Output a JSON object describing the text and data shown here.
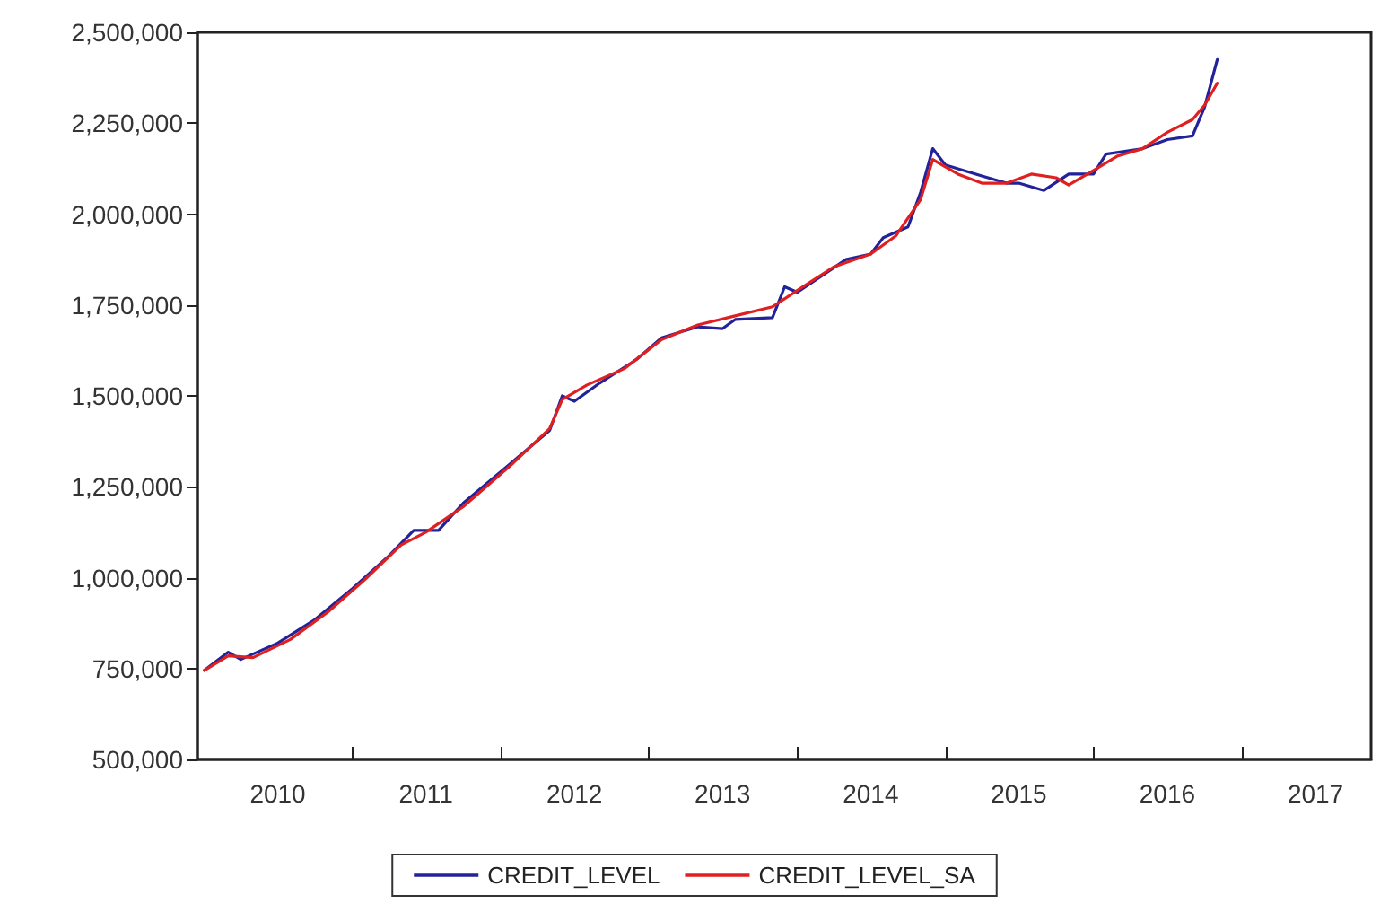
{
  "chart_data": {
    "type": "line",
    "xlim": [
      "2009-12-15",
      "2017-11-15"
    ],
    "xticks": [
      {
        "value": "2010-07",
        "label": "2010"
      },
      {
        "value": "2011-01",
        "label": null
      },
      {
        "value": "2011-07",
        "label": "2011"
      },
      {
        "value": "2012-01",
        "label": null
      },
      {
        "value": "2012-07",
        "label": "2012"
      },
      {
        "value": "2013-01",
        "label": null
      },
      {
        "value": "2013-07",
        "label": "2013"
      },
      {
        "value": "2014-01",
        "label": null
      },
      {
        "value": "2014-07",
        "label": "2014"
      },
      {
        "value": "2015-01",
        "label": null
      },
      {
        "value": "2015-07",
        "label": "2015"
      },
      {
        "value": "2016-01",
        "label": null
      },
      {
        "value": "2016-07",
        "label": "2016"
      },
      {
        "value": "2017-01",
        "label": null
      },
      {
        "value": "2017-07",
        "label": "2017"
      }
    ],
    "ylim": [
      500000,
      2500000
    ],
    "yticks": [
      {
        "value": 500000,
        "label": "500,000"
      },
      {
        "value": 750000,
        "label": "750,000"
      },
      {
        "value": 1000000,
        "label": "1,000,000"
      },
      {
        "value": 1250000,
        "label": "1,250,000"
      },
      {
        "value": 1500000,
        "label": "1,500,000"
      },
      {
        "value": 1750000,
        "label": "1,750,000"
      },
      {
        "value": 2000000,
        "label": "2,000,000"
      },
      {
        "value": 2250000,
        "label": "2,250,000"
      },
      {
        "value": 2500000,
        "label": "2,500,000"
      }
    ],
    "grid": false,
    "legend": "bottom",
    "marker": "none",
    "line_style": "solid",
    "series": [
      {
        "name": "CREDIT_LEVEL",
        "color": "#22229a",
        "x": [
          "2010-01",
          "2010-03",
          "2010-04",
          "2010-07",
          "2010-10",
          "2011-01",
          "2011-04",
          "2011-06",
          "2011-08",
          "2011-10",
          "2012-02",
          "2012-05",
          "2012-06",
          "2012-07",
          "2012-09",
          "2012-12",
          "2013-02",
          "2013-05",
          "2013-07",
          "2013-08",
          "2013-11",
          "2013-12",
          "2014-01",
          "2014-05",
          "2014-07",
          "2014-08",
          "2014-10",
          "2014-11",
          "2014-12",
          "2015-01",
          "2015-04",
          "2015-06",
          "2015-07",
          "2015-09",
          "2015-11",
          "2016-01",
          "2016-02",
          "2016-05",
          "2016-07",
          "2016-09",
          "2016-10",
          "2016-11"
        ],
        "values": [
          745000,
          795000,
          775000,
          820000,
          885000,
          970000,
          1060000,
          1130000,
          1130000,
          1205000,
          1320000,
          1405000,
          1500000,
          1485000,
          1535000,
          1600000,
          1660000,
          1690000,
          1685000,
          1710000,
          1715000,
          1800000,
          1785000,
          1875000,
          1890000,
          1935000,
          1965000,
          2060000,
          2180000,
          2135000,
          2105000,
          2085000,
          2085000,
          2065000,
          2110000,
          2110000,
          2165000,
          2180000,
          2205000,
          2215000,
          2295000,
          2425000
        ]
      },
      {
        "name": "CREDIT_LEVEL_SA",
        "color": "#e02020",
        "x": [
          "2010-01",
          "2010-03",
          "2010-05",
          "2010-08",
          "2010-11",
          "2011-02",
          "2011-05",
          "2011-07",
          "2011-10",
          "2012-02",
          "2012-05",
          "2012-06",
          "2012-08",
          "2012-11",
          "2013-02",
          "2013-05",
          "2013-08",
          "2013-11",
          "2014-01",
          "2014-04",
          "2014-07",
          "2014-09",
          "2014-11",
          "2014-12",
          "2015-02",
          "2015-04",
          "2015-06",
          "2015-08",
          "2015-10",
          "2015-11",
          "2016-01",
          "2016-03",
          "2016-05",
          "2016-07",
          "2016-09",
          "2016-10",
          "2016-11"
        ],
        "values": [
          745000,
          785000,
          780000,
          830000,
          905000,
          995000,
          1090000,
          1125000,
          1195000,
          1315000,
          1410000,
          1490000,
          1530000,
          1575000,
          1655000,
          1695000,
          1720000,
          1745000,
          1790000,
          1855000,
          1890000,
          1940000,
          2040000,
          2150000,
          2110000,
          2085000,
          2085000,
          2110000,
          2100000,
          2080000,
          2120000,
          2160000,
          2180000,
          2225000,
          2260000,
          2300000,
          2360000
        ]
      }
    ]
  }
}
